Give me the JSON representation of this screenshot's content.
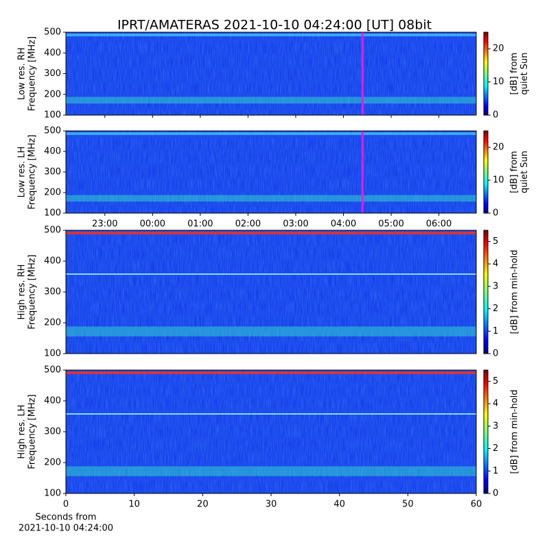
{
  "chart_data": [
    {
      "type": "heatmap",
      "title": "IPRT/AMATERAS 2021-10-10 04:24:00 [UT]   08bit",
      "ylabel": [
        "Low res. RH",
        "Frequency [MHz]"
      ],
      "ylim": [
        100,
        500
      ],
      "yticks": [
        100,
        200,
        300,
        400,
        500
      ],
      "xlim": [
        "22:11",
        "06:47"
      ],
      "marker": "04:24",
      "marker_color": "#e020e0",
      "clim": [
        0,
        25
      ],
      "cticks": [
        0,
        10,
        20
      ],
      "clabel": [
        "[dB] from",
        "quiet Sun"
      ]
    },
    {
      "type": "heatmap",
      "ylabel": [
        "Low res. LH",
        "Frequency [MHz]"
      ],
      "ylim": [
        100,
        500
      ],
      "yticks": [
        100,
        200,
        300,
        400,
        500
      ],
      "xlim": [
        "22:11",
        "06:47"
      ],
      "xticks": [
        "23:00",
        "00:00",
        "01:00",
        "02:00",
        "03:00",
        "04:00",
        "05:00",
        "06:00"
      ],
      "marker": "04:24",
      "marker_color": "#e020e0",
      "clim": [
        0,
        25
      ],
      "cticks": [
        0,
        10,
        20
      ],
      "clabel": [
        "[dB] from",
        "quiet Sun"
      ]
    },
    {
      "type": "heatmap",
      "ylabel": [
        "High res. RH",
        "Frequency [MHz]"
      ],
      "ylim": [
        100,
        500
      ],
      "yticks": [
        100,
        200,
        300,
        400,
        500
      ],
      "xlim": [
        0,
        60
      ],
      "clim": [
        0,
        5.5
      ],
      "cticks": [
        0,
        1,
        2,
        3,
        4,
        5
      ],
      "clabel": [
        "[dB] from min-hold"
      ]
    },
    {
      "type": "heatmap",
      "ylabel": [
        "High res. LH",
        "Frequency [MHz]"
      ],
      "ylim": [
        100,
        500
      ],
      "yticks": [
        100,
        200,
        300,
        400,
        500
      ],
      "xlim": [
        0,
        60
      ],
      "xticks": [
        0,
        10,
        20,
        30,
        40,
        50,
        60
      ],
      "xlabel": [
        "Seconds from",
        "2021-10-10 04:24:00"
      ],
      "clim": [
        0,
        5.5
      ],
      "cticks": [
        0,
        1,
        2,
        3,
        4,
        5
      ],
      "clabel": [
        "[dB] from min-hold"
      ]
    }
  ]
}
